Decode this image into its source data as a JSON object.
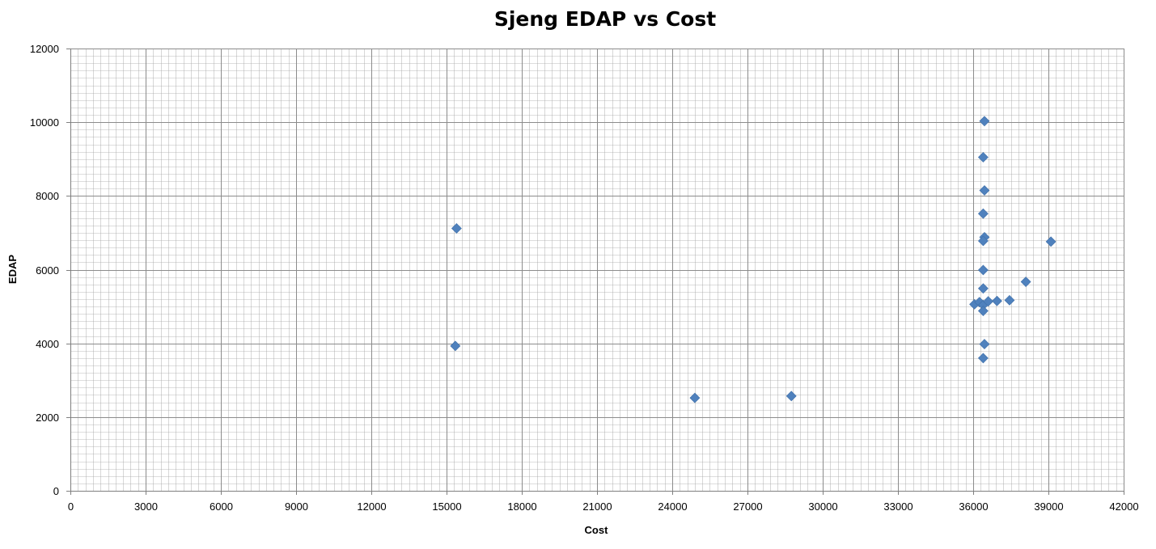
{
  "chart_data": {
    "type": "scatter",
    "title": "Sjeng EDAP vs Cost",
    "xlabel": "Cost",
    "ylabel": "EDAP",
    "xlim": [
      0,
      42000
    ],
    "ylim": [
      0,
      12000
    ],
    "x_ticks": [
      0,
      3000,
      6000,
      9000,
      12000,
      15000,
      18000,
      21000,
      24000,
      27000,
      30000,
      33000,
      36000,
      39000,
      42000
    ],
    "y_ticks": [
      0,
      2000,
      4000,
      6000,
      8000,
      10000,
      12000
    ],
    "x_tick_labels": [
      "0",
      "3000",
      "6000",
      "9000",
      "12000",
      "15000",
      "18000",
      "21000",
      "24000",
      "27000",
      "30000",
      "33000",
      "36000",
      "39000",
      "42000"
    ],
    "y_tick_labels": [
      "0",
      "2000",
      "4000",
      "6000",
      "8000",
      "10000",
      "12000"
    ],
    "minor_grid_x_step": 300,
    "minor_grid_y_step": 200,
    "grid": true,
    "legend": false,
    "marker": "diamond",
    "marker_color": "#4F81BD",
    "grid_color": "#A6A6A6",
    "series": [
      {
        "points": [
          {
            "x": 15400,
            "y": 7120
          },
          {
            "x": 15350,
            "y": 3930
          },
          {
            "x": 24900,
            "y": 2520
          },
          {
            "x": 28750,
            "y": 2570
          },
          {
            "x": 36450,
            "y": 10030
          },
          {
            "x": 36400,
            "y": 9050
          },
          {
            "x": 36450,
            "y": 8150
          },
          {
            "x": 36400,
            "y": 7520
          },
          {
            "x": 36450,
            "y": 6880
          },
          {
            "x": 36400,
            "y": 6780
          },
          {
            "x": 36400,
            "y": 5990
          },
          {
            "x": 36400,
            "y": 5490
          },
          {
            "x": 36050,
            "y": 5060
          },
          {
            "x": 36250,
            "y": 5120
          },
          {
            "x": 36400,
            "y": 5040
          },
          {
            "x": 36600,
            "y": 5140
          },
          {
            "x": 36950,
            "y": 5150
          },
          {
            "x": 37450,
            "y": 5170
          },
          {
            "x": 36400,
            "y": 4880
          },
          {
            "x": 36450,
            "y": 3980
          },
          {
            "x": 36400,
            "y": 3600
          },
          {
            "x": 38100,
            "y": 5670
          },
          {
            "x": 39100,
            "y": 6760
          }
        ]
      }
    ]
  }
}
